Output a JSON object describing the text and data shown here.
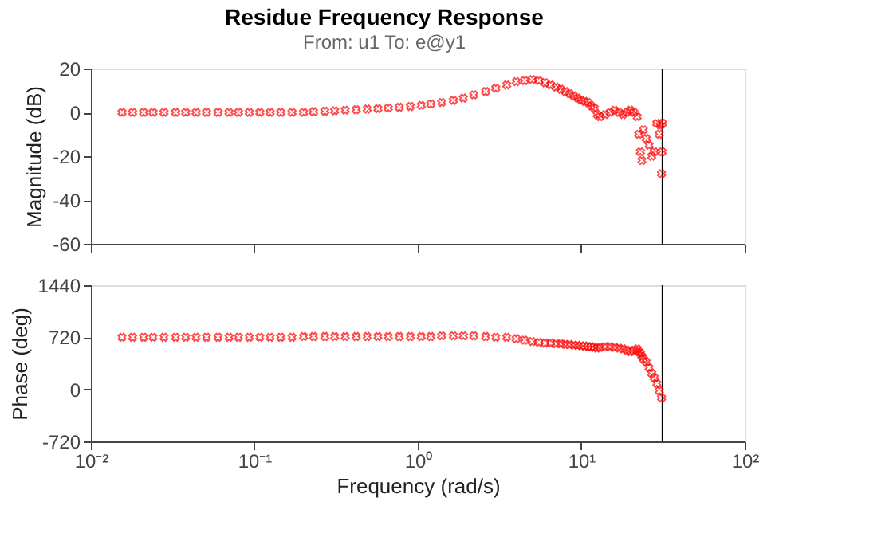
{
  "chart_data": [
    {
      "type": "scatter",
      "title": "Residue Frequency Response",
      "subtitle": "From: u1  To: e@y1",
      "ylabel": "Magnitude (dB)",
      "log": "x",
      "marker": "cross",
      "grid": false,
      "tick_labels": "y",
      "xlim": [
        0.01,
        100
      ],
      "xticks": [
        {
          "value": 0.01,
          "label": null
        },
        {
          "value": 0.1,
          "label": null
        },
        {
          "value": 1,
          "label": null
        },
        {
          "value": 10,
          "label": null
        },
        {
          "value": 100,
          "label": null
        }
      ],
      "ylim": [
        -60,
        20
      ],
      "yticks": [
        -60,
        -40,
        -20,
        0,
        20
      ],
      "ref_lines": [
        {
          "axis": "x",
          "value": 31.4,
          "color": "#000000"
        }
      ],
      "series": [
        {
          "color": "#ff0000",
          "x": [
            0.0155,
            0.018,
            0.021,
            0.024,
            0.028,
            0.033,
            0.038,
            0.044,
            0.051,
            0.06,
            0.07,
            0.08,
            0.093,
            0.108,
            0.125,
            0.145,
            0.17,
            0.2,
            0.23,
            0.27,
            0.31,
            0.36,
            0.42,
            0.49,
            0.57,
            0.66,
            0.77,
            0.9,
            1.05,
            1.2,
            1.4,
            1.65,
            1.9,
            2.2,
            2.6,
            3.0,
            3.5,
            4.0,
            4.5,
            5.0,
            5.5,
            6.0,
            6.5,
            7.0,
            7.5,
            8.0,
            8.5,
            9.0,
            9.5,
            10,
            10.5,
            11,
            11.5,
            12,
            12.5,
            13,
            14,
            15,
            16,
            17,
            18,
            19,
            20,
            21,
            22,
            22.5,
            23,
            23.5,
            24,
            25,
            26,
            27,
            28,
            29,
            30,
            30.5,
            31,
            31.2,
            31.4
          ],
          "values": [
            0,
            0,
            0,
            0,
            0,
            0,
            0,
            0,
            0,
            0,
            0,
            0,
            0,
            0,
            0,
            0,
            0,
            0,
            0.3,
            0.5,
            0.7,
            1,
            1.2,
            1.5,
            1.7,
            2,
            2.3,
            2.7,
            3.2,
            3.8,
            4.5,
            5.5,
            6.5,
            8,
            9.5,
            11,
            12.5,
            14,
            14.5,
            15,
            14.5,
            13.5,
            12.5,
            11.5,
            10.5,
            9.5,
            8.5,
            7.5,
            6.5,
            5.5,
            5,
            4.5,
            3,
            2,
            -1,
            -2,
            -1,
            0,
            1,
            0,
            -1,
            0,
            1,
            0,
            -2,
            -10,
            -18,
            -22,
            -8,
            -12,
            -15,
            -20,
            -18,
            -5,
            -10,
            -6,
            -28,
            -18,
            -5
          ]
        }
      ]
    },
    {
      "type": "scatter",
      "xlabel": "Frequency  (rad/s)",
      "ylabel": "Phase (deg)",
      "log": "x",
      "marker": "cross",
      "grid": false,
      "xlim": [
        0.01,
        100
      ],
      "xticks": [
        {
          "value": 0.01,
          "label": "10⁻²"
        },
        {
          "value": 0.1,
          "label": "10⁻¹"
        },
        {
          "value": 1,
          "label": "10⁰"
        },
        {
          "value": 10,
          "label": "10¹"
        },
        {
          "value": 100,
          "label": "10²"
        }
      ],
      "ylim": [
        -720,
        1440
      ],
      "yticks": [
        -720,
        0,
        720,
        1440
      ],
      "ref_lines": [
        {
          "axis": "x",
          "value": 31.4,
          "color": "#000000"
        }
      ],
      "series": [
        {
          "color": "#ff0000",
          "x": [
            0.0155,
            0.018,
            0.021,
            0.024,
            0.028,
            0.033,
            0.038,
            0.044,
            0.051,
            0.06,
            0.07,
            0.08,
            0.093,
            0.108,
            0.125,
            0.145,
            0.17,
            0.2,
            0.23,
            0.27,
            0.31,
            0.36,
            0.42,
            0.49,
            0.57,
            0.66,
            0.77,
            0.9,
            1.05,
            1.2,
            1.4,
            1.65,
            1.9,
            2.2,
            2.6,
            3.0,
            3.5,
            4.0,
            4.5,
            5.0,
            5.5,
            6.0,
            6.5,
            7.0,
            7.5,
            8.0,
            8.5,
            9.0,
            9.5,
            10,
            10.5,
            11,
            11.5,
            12,
            12.5,
            13,
            14,
            15,
            16,
            17,
            18,
            19,
            20,
            21,
            22,
            22.5,
            23,
            23.5,
            24,
            25,
            26,
            27,
            28,
            29,
            30,
            31
          ],
          "values": [
            720,
            720,
            720,
            720,
            720,
            720,
            720,
            720,
            720,
            720,
            720,
            720,
            720,
            720,
            720,
            720,
            720,
            730,
            730,
            730,
            730,
            730,
            730,
            730,
            730,
            730,
            730,
            730,
            730,
            730,
            740,
            740,
            740,
            740,
            730,
            720,
            720,
            700,
            680,
            660,
            650,
            640,
            640,
            630,
            630,
            620,
            620,
            610,
            610,
            600,
            600,
            590,
            590,
            580,
            570,
            580,
            590,
            590,
            580,
            570,
            560,
            540,
            520,
            540,
            560,
            520,
            500,
            460,
            420,
            380,
            300,
            220,
            160,
            80,
            -20,
            -120
          ]
        }
      ]
    }
  ]
}
